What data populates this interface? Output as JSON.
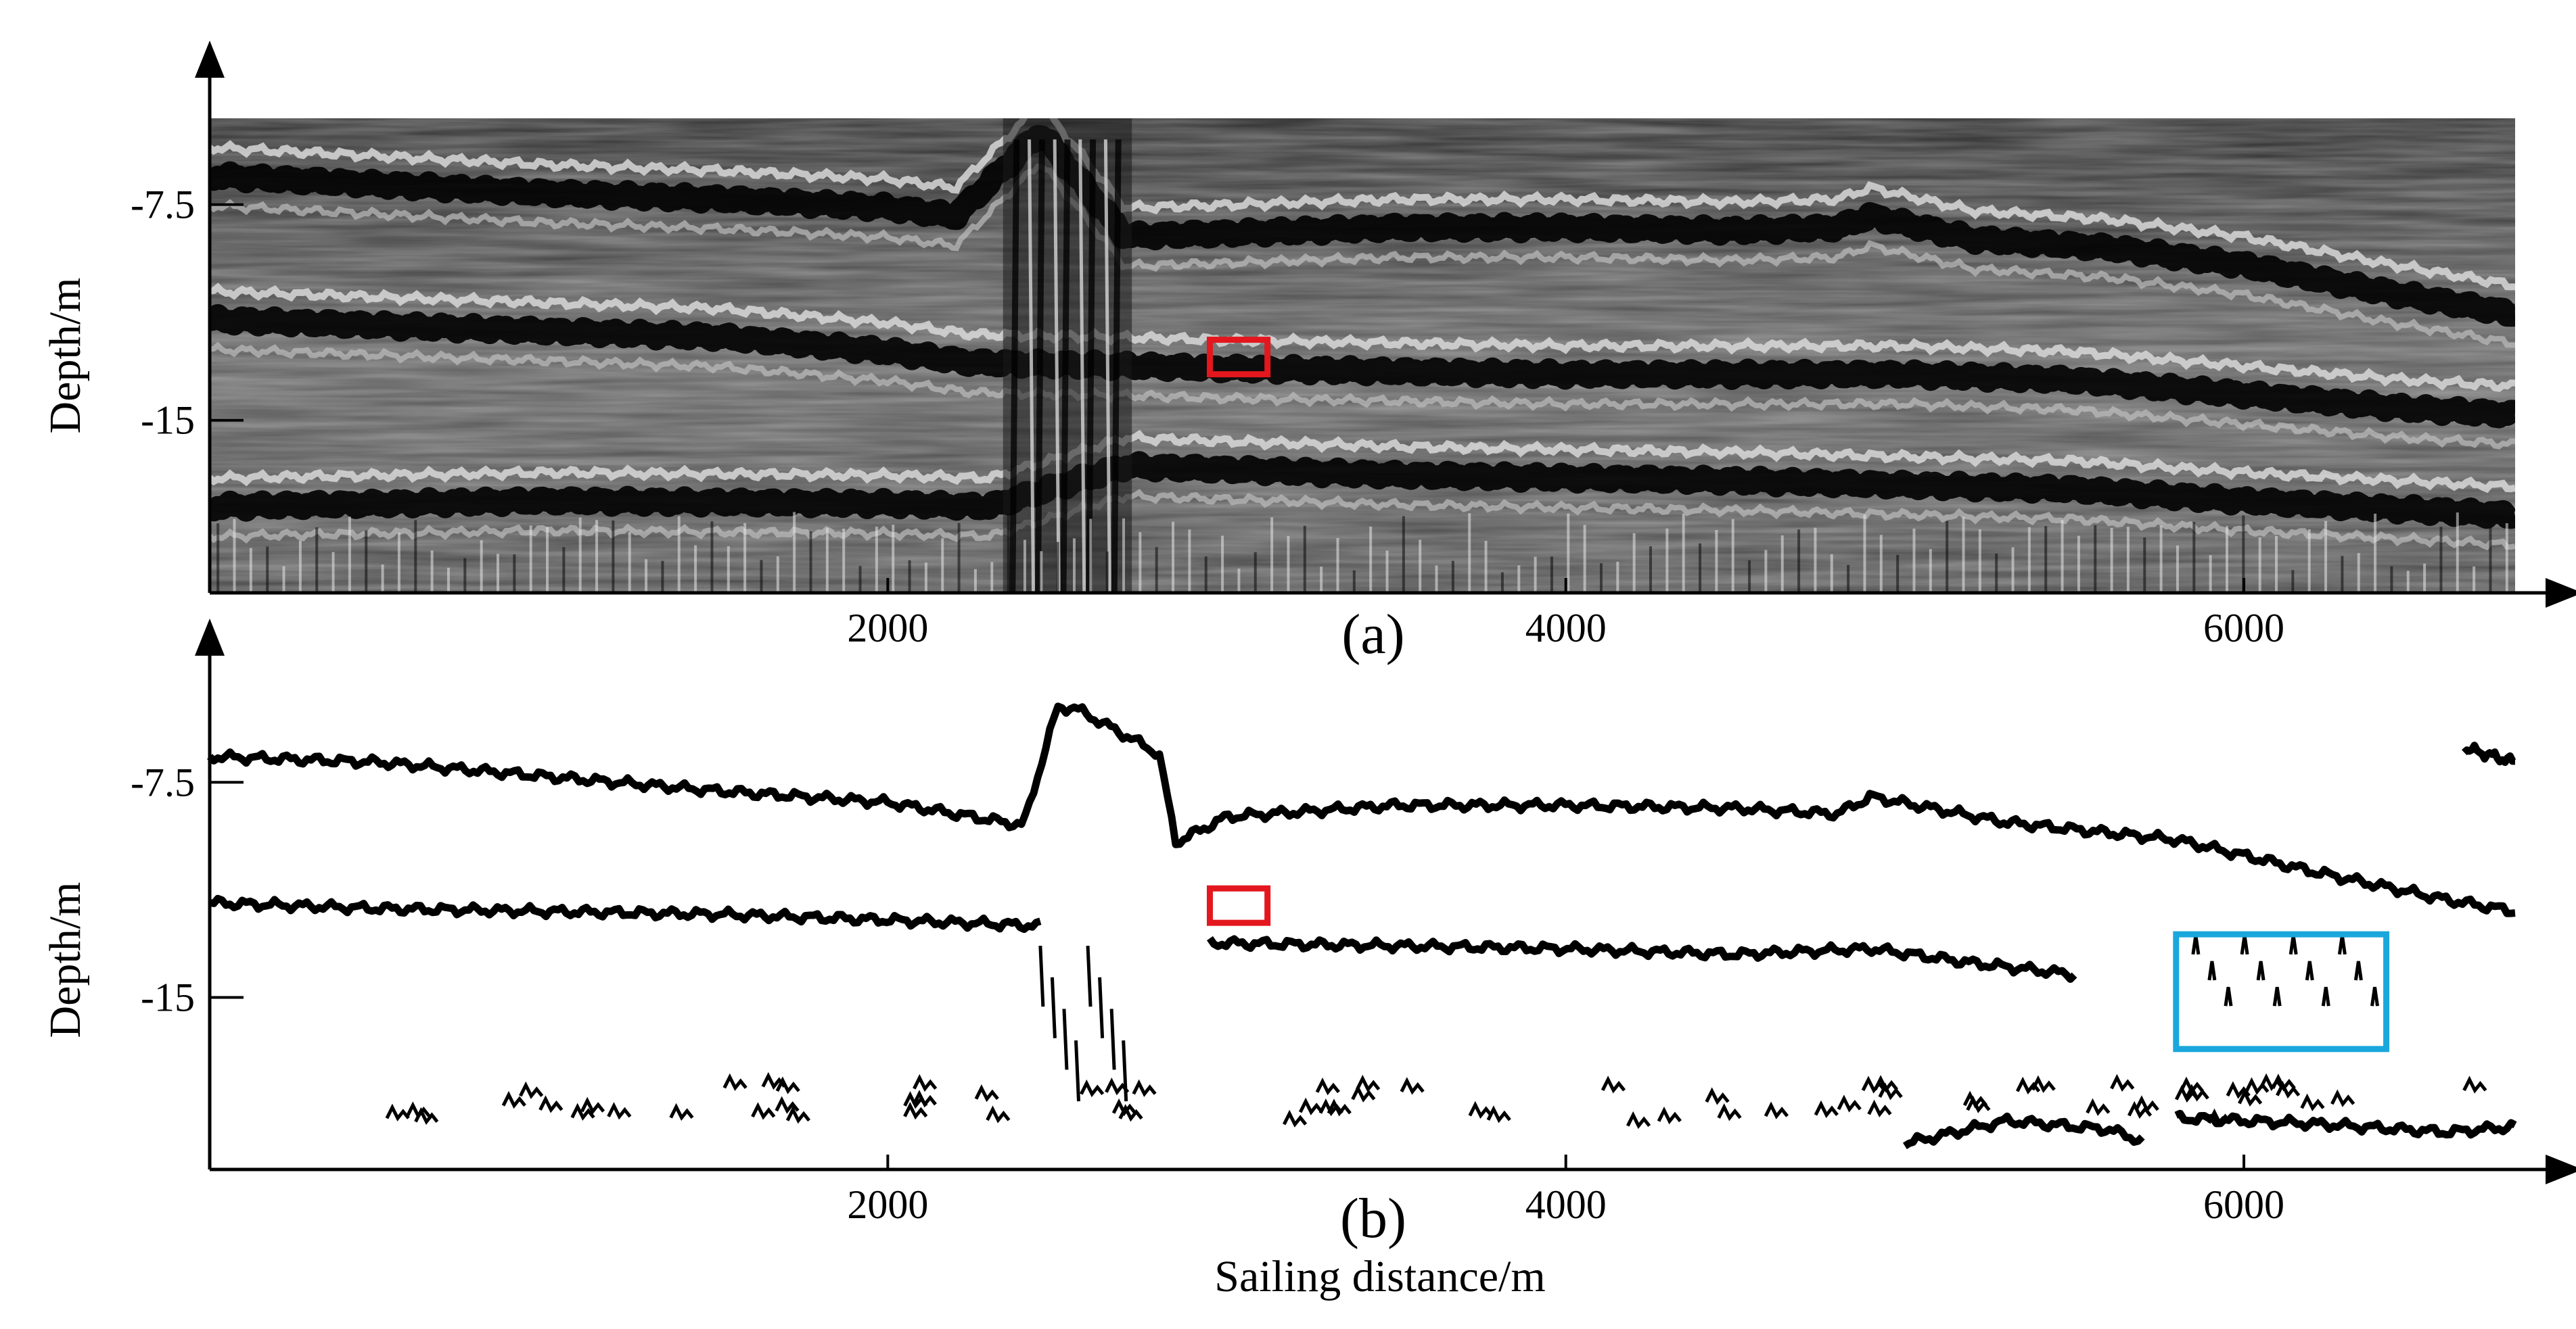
{
  "panels": [
    {
      "id": "a",
      "label": "(a)",
      "ylabel": "Depth/m",
      "xlabel": "",
      "xticks": [
        2000,
        4000,
        6000
      ],
      "yticks": [
        -7.5,
        -15
      ],
      "ytick_labels": [
        "-7.5",
        "-15"
      ],
      "xtick_labels": [
        "2000",
        "4000",
        "6000"
      ]
    },
    {
      "id": "b",
      "label": "(b)",
      "ylabel": "Depth/m",
      "xlabel": "Sailing distance/m",
      "xticks": [
        2000,
        4000,
        6000
      ],
      "yticks": [
        -7.5,
        -15
      ],
      "ytick_labels": [
        "-7.5",
        "-15"
      ],
      "xtick_labels": [
        "2000",
        "4000",
        "6000"
      ]
    }
  ],
  "colors": {
    "highlight_red": "#e3171d",
    "highlight_blue": "#1aa7dd",
    "trace": "#000000"
  },
  "chart_data": [
    {
      "type": "heatmap",
      "panel": "a",
      "description_free": true,
      "xlim": [
        0,
        6800
      ],
      "ylim": [
        -21,
        -4.5
      ],
      "ylabel": "Depth/m",
      "xlabel": "",
      "reflectors": [
        {
          "x": [
            0,
            500,
            1000,
            1500,
            2000,
            2200,
            2450,
            2700,
            3000,
            3500,
            4000,
            4500,
            4800,
            4900,
            5200,
            5600,
            6000,
            6400,
            6800
          ],
          "y": [
            -6.5,
            -6.8,
            -7.1,
            -7.3,
            -7.6,
            -7.9,
            -5.0,
            -8.6,
            -8.5,
            -8.3,
            -8.3,
            -8.4,
            -8.3,
            -7.9,
            -8.7,
            -9.0,
            -9.6,
            -10.5,
            -11.3
          ]
        },
        {
          "x": [
            0,
            500,
            1000,
            1500,
            2000,
            2250,
            2700,
            3000,
            3500,
            4000,
            4500,
            5000,
            5500,
            6000,
            6500,
            6800
          ],
          "y": [
            -11.5,
            -11.7,
            -11.9,
            -12.1,
            -12.6,
            -13.0,
            -13.1,
            -13.2,
            -13.3,
            -13.4,
            -13.4,
            -13.4,
            -13.6,
            -14.1,
            -14.6,
            -14.8
          ]
        },
        {
          "x": [
            0,
            1000,
            2000,
            2300,
            2700,
            3500,
            4500,
            5500,
            6000,
            6800
          ],
          "y": [
            -18.0,
            -17.8,
            -17.9,
            -18.0,
            -16.6,
            -16.9,
            -17.1,
            -17.4,
            -17.8,
            -18.3
          ]
        }
      ],
      "annotations": [
        {
          "shape": "rectangle",
          "color": "#e3171d",
          "x": [
            2950,
            3120
          ],
          "y": [
            -12.2,
            -13.4
          ]
        }
      ]
    },
    {
      "type": "line",
      "panel": "b",
      "xlim": [
        0,
        6800
      ],
      "ylim": [
        -21,
        -4.5
      ],
      "xlabel": "Sailing distance/m",
      "ylabel": "Depth/m",
      "series": [
        {
          "x": [
            0,
            500,
            1000,
            1500,
            2000,
            2400,
            2500,
            2550,
            2800,
            2850,
            3000,
            3500,
            4000,
            4500,
            4800,
            4900,
            5300,
            5800,
            6200,
            6600,
            6800
          ],
          "y": [
            -6.6,
            -6.8,
            -7.3,
            -7.8,
            -8.2,
            -9.0,
            -4.9,
            -4.9,
            -6.5,
            -9.6,
            -8.7,
            -8.3,
            -8.3,
            -8.4,
            -8.6,
            -8.0,
            -8.9,
            -9.5,
            -10.6,
            -11.6,
            -12.0
          ]
        },
        {
          "x": [
            0,
            500,
            1000,
            1500,
            2000,
            2450
          ],
          "y": [
            -11.7,
            -11.9,
            -12.0,
            -12.1,
            -12.3,
            -12.5
          ]
        },
        {
          "x": [
            2950,
            3500,
            4000,
            4500,
            4900,
            5200,
            5500
          ],
          "y": [
            -13.1,
            -13.2,
            -13.3,
            -13.5,
            -13.3,
            -13.8,
            -14.2
          ]
        },
        {
          "x": [
            5000,
            5300,
            5600,
            5700
          ],
          "y": [
            -20.1,
            -19.3,
            -19.6,
            -20.0
          ]
        },
        {
          "x": [
            5800,
            6200,
            6600,
            6800
          ],
          "y": [
            -19.2,
            -19.4,
            -19.7,
            -19.5
          ]
        },
        {
          "x": [
            6650,
            6800
          ],
          "y": [
            -6.3,
            -6.8
          ]
        }
      ],
      "annotations": [
        {
          "shape": "rectangle",
          "color": "#e3171d",
          "x": [
            2950,
            3120
          ],
          "y": [
            -11.2,
            -12.4
          ]
        },
        {
          "shape": "rectangle",
          "color": "#1aa7dd",
          "x": [
            5800,
            6420
          ],
          "y": [
            -12.8,
            -16.8
          ]
        }
      ]
    }
  ]
}
